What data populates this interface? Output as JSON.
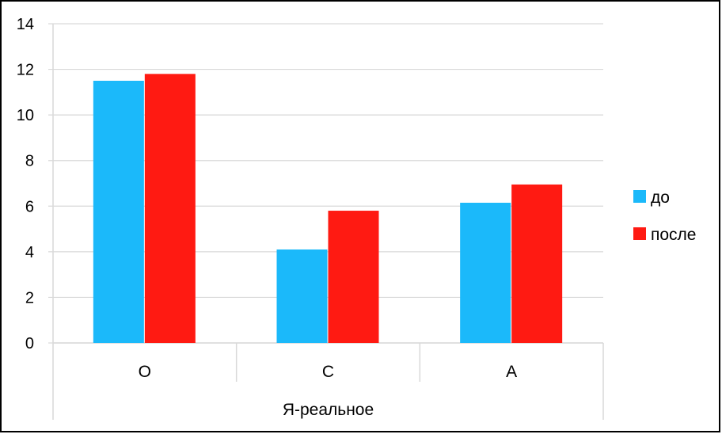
{
  "chart_data": {
    "type": "bar",
    "title": "",
    "xlabel": "",
    "ylabel": "",
    "ylim": [
      0,
      14
    ],
    "y_ticks": [
      0,
      2,
      4,
      6,
      8,
      10,
      12,
      14
    ],
    "y_tick_labels": [
      "0",
      "2",
      "4",
      "6",
      "8",
      "10",
      "12",
      "14"
    ],
    "categories": [
      "О",
      "С",
      "А"
    ],
    "group_label": "Я-реальное",
    "series": [
      {
        "name": "до",
        "color": "#1BB9FA",
        "values": [
          11.5,
          4.1,
          6.15
        ]
      },
      {
        "name": "после",
        "color": "#FF1A12",
        "values": [
          11.8,
          5.8,
          6.95
        ]
      }
    ],
    "grid": true,
    "legend_position": "right"
  }
}
